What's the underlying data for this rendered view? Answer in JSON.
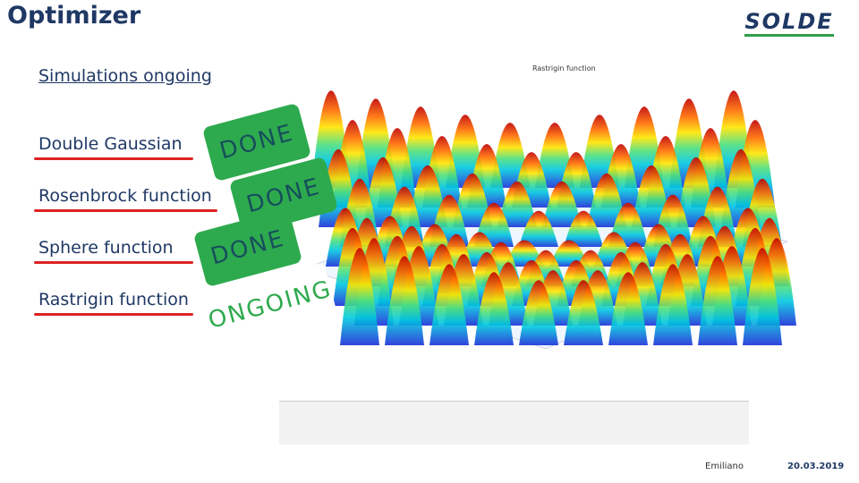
{
  "header": {
    "title": "Optimizer",
    "logo": "SOLDE"
  },
  "subtitle": "Simulations ongoing",
  "items": [
    {
      "label": "Double Gaussian",
      "status": "DONE"
    },
    {
      "label": "Rosenbrock function",
      "status": "DONE"
    },
    {
      "label": "Sphere function",
      "status": "DONE"
    },
    {
      "label": "Rastrigin function",
      "status": "ONGOING"
    }
  ],
  "figure": {
    "title": "Rastrigin function"
  },
  "footer": {
    "author": "Emiliano",
    "date": "20.03.2019"
  }
}
